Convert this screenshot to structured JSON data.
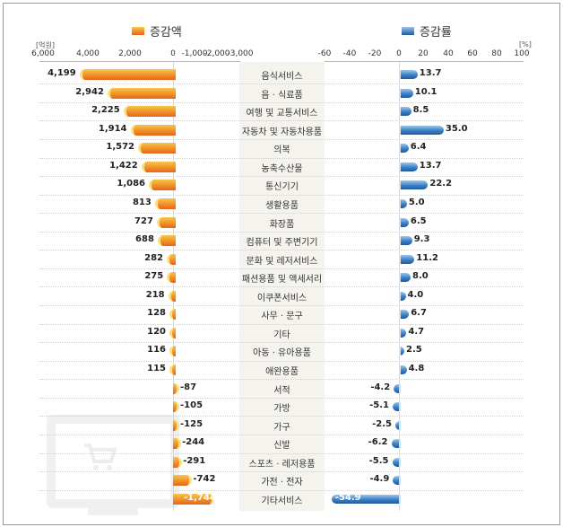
{
  "legend": {
    "left": {
      "label": "증감액",
      "color": "#f29a2e"
    },
    "right": {
      "label": "증감률",
      "color": "#3c7fc4"
    }
  },
  "left_axis": {
    "unit": "[억원]",
    "ticks": [
      "6,000",
      "4,000",
      "2,000",
      "0",
      "-1,000",
      "-2,000",
      "-3,000"
    ]
  },
  "right_axis": {
    "unit": "[%]",
    "ticks": [
      "-60",
      "-40",
      "-20",
      "0",
      "20",
      "40",
      "60",
      "80",
      "100"
    ]
  },
  "chart_data": [
    {
      "type": "bar",
      "orientation": "horizontal",
      "title": "증감액",
      "xlabel": "[억원]",
      "xlim": [
        6000,
        -3000
      ],
      "grid": true,
      "legend_position": "top",
      "categories": [
        "음식서비스",
        "음 · 식료품",
        "여행 및 교통서비스",
        "자동차 및 자동차용품",
        "의복",
        "농축수산물",
        "통신기기",
        "생활용품",
        "화장품",
        "컴퓨터 및 주변기기",
        "문화 및 레저서비스",
        "패션용품 및 액세서리",
        "이쿠폰서비스",
        "사무 · 문구",
        "기타",
        "아동 · 유아용품",
        "애완용품",
        "서적",
        "가방",
        "가구",
        "신발",
        "스포츠 · 레저용품",
        "가전 · 전자",
        "기타서비스"
      ],
      "series": [
        {
          "name": "증감액",
          "values": [
            4199,
            2942,
            2225,
            1914,
            1572,
            1422,
            1086,
            813,
            727,
            688,
            282,
            275,
            218,
            128,
            120,
            116,
            115,
            -87,
            -105,
            -125,
            -244,
            -291,
            -742,
            -1744
          ]
        }
      ]
    },
    {
      "type": "bar",
      "orientation": "horizontal",
      "title": "증감률",
      "xlabel": "[%]",
      "xlim": [
        -60,
        100
      ],
      "grid": true,
      "legend_position": "top",
      "categories": [
        "음식서비스",
        "음 · 식료품",
        "여행 및 교통서비스",
        "자동차 및 자동차용품",
        "의복",
        "농축수산물",
        "통신기기",
        "생활용품",
        "화장품",
        "컴퓨터 및 주변기기",
        "문화 및 레저서비스",
        "패션용품 및 액세서리",
        "이쿠폰서비스",
        "사무 · 문구",
        "기타",
        "아동 · 유아용품",
        "애완용품",
        "서적",
        "가방",
        "가구",
        "신발",
        "스포츠 · 레저용품",
        "가전 · 전자",
        "기타서비스"
      ],
      "series": [
        {
          "name": "증감률",
          "values": [
            13.7,
            10.1,
            8.5,
            35.0,
            6.4,
            13.7,
            22.2,
            5.0,
            6.5,
            9.3,
            11.2,
            8.0,
            4.0,
            6.7,
            4.7,
            2.5,
            4.8,
            -4.2,
            -5.1,
            -2.5,
            -6.2,
            -5.5,
            -4.9,
            -54.9
          ]
        }
      ]
    }
  ],
  "rows": [
    {
      "category": "음식서비스",
      "amount": "4,199",
      "rate": "13.7"
    },
    {
      "category": "음 · 식료품",
      "amount": "2,942",
      "rate": "10.1"
    },
    {
      "category": "여행 및 교통서비스",
      "amount": "2,225",
      "rate": "8.5"
    },
    {
      "category": "자동차 및 자동차용품",
      "amount": "1,914",
      "rate": "35.0"
    },
    {
      "category": "의복",
      "amount": "1,572",
      "rate": "6.4"
    },
    {
      "category": "농축수산물",
      "amount": "1,422",
      "rate": "13.7"
    },
    {
      "category": "통신기기",
      "amount": "1,086",
      "rate": "22.2"
    },
    {
      "category": "생활용품",
      "amount": "813",
      "rate": "5.0"
    },
    {
      "category": "화장품",
      "amount": "727",
      "rate": "6.5"
    },
    {
      "category": "컴퓨터 및 주변기기",
      "amount": "688",
      "rate": "9.3"
    },
    {
      "category": "문화 및 레저서비스",
      "amount": "282",
      "rate": "11.2"
    },
    {
      "category": "패션용품 및 액세서리",
      "amount": "275",
      "rate": "8.0"
    },
    {
      "category": "이쿠폰서비스",
      "amount": "218",
      "rate": "4.0"
    },
    {
      "category": "사무 · 문구",
      "amount": "128",
      "rate": "6.7"
    },
    {
      "category": "기타",
      "amount": "120",
      "rate": "4.7"
    },
    {
      "category": "아동 · 유아용품",
      "amount": "116",
      "rate": "2.5"
    },
    {
      "category": "애완용품",
      "amount": "115",
      "rate": "4.8"
    },
    {
      "category": "서적",
      "amount": "-87",
      "rate": "-4.2"
    },
    {
      "category": "가방",
      "amount": "-105",
      "rate": "-5.1"
    },
    {
      "category": "가구",
      "amount": "-125",
      "rate": "-2.5"
    },
    {
      "category": "신발",
      "amount": "-244",
      "rate": "-6.2"
    },
    {
      "category": "스포츠 · 레저용품",
      "amount": "-291",
      "rate": "-5.5"
    },
    {
      "category": "가전 · 전자",
      "amount": "-742",
      "rate": "-4.9"
    },
    {
      "category": "기타서비스",
      "amount": "-1,744",
      "rate": "-54.9"
    }
  ],
  "decoration": {
    "watermark_icon": "shopping-cart-monitor-icon"
  }
}
